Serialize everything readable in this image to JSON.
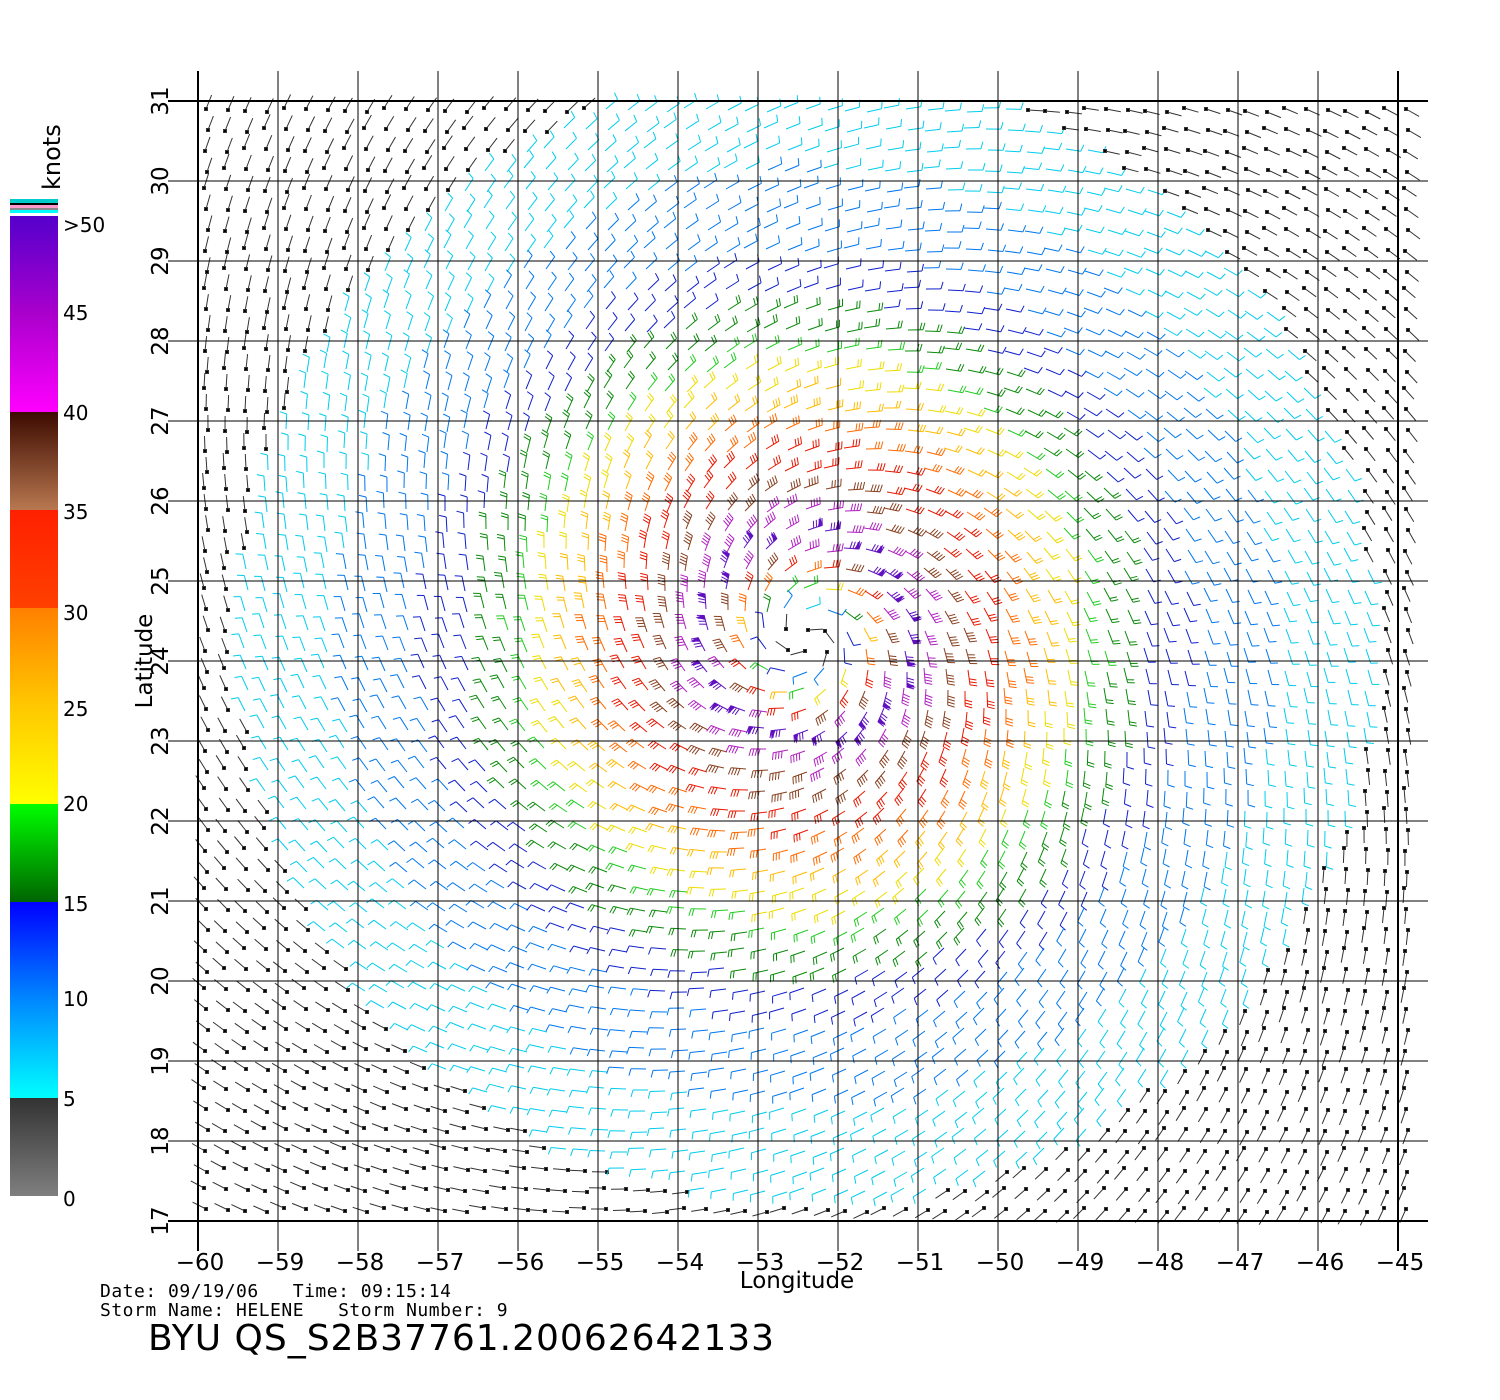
{
  "plot": {
    "xlabel": "Longitude",
    "ylabel": "Latitude",
    "lon_range": [
      -60,
      -45
    ],
    "lat_range": [
      17,
      31
    ],
    "lon_ticks": [
      "−60",
      "−59",
      "−58",
      "−57",
      "−56",
      "−55",
      "−54",
      "−53",
      "−52",
      "−51",
      "−50",
      "−49",
      "−48",
      "−47",
      "−46",
      "−45"
    ],
    "lat_ticks": [
      "17",
      "18",
      "19",
      "20",
      "21",
      "22",
      "23",
      "24",
      "25",
      "26",
      "27",
      "28",
      "29",
      "30",
      "31"
    ],
    "grid": true,
    "storm_center": {
      "lon": -52.4,
      "lat": 24.3
    }
  },
  "colorbar": {
    "title": "knots",
    "labels": [
      ">50",
      "45",
      "40",
      "35",
      "30",
      "25",
      "20",
      "15",
      "10",
      "5",
      "0"
    ],
    "colors": {
      "gray": "#7f7f7f",
      "dark": "#333333",
      "cyan": "#00ffff",
      "blue": "#0000ff",
      "darkgreen": "#006400",
      "green": "#00ff00",
      "yellow": "#ffff00",
      "gold": "#ffc800",
      "orange": "#ff8000",
      "red": "#ff2000",
      "brown": "#b87850",
      "darkbrown": "#3c0a00",
      "magenta": "#ff00ff",
      "purple": "#8800cc",
      "violet": "#5500cc"
    }
  },
  "footer": {
    "date_line": "Date: 09/19/06   Time: 09:15:14",
    "storm_line": "Storm Name: HELENE   Storm Number: 9",
    "product_id": "BYU QS_S2B37761.20062642133"
  }
}
